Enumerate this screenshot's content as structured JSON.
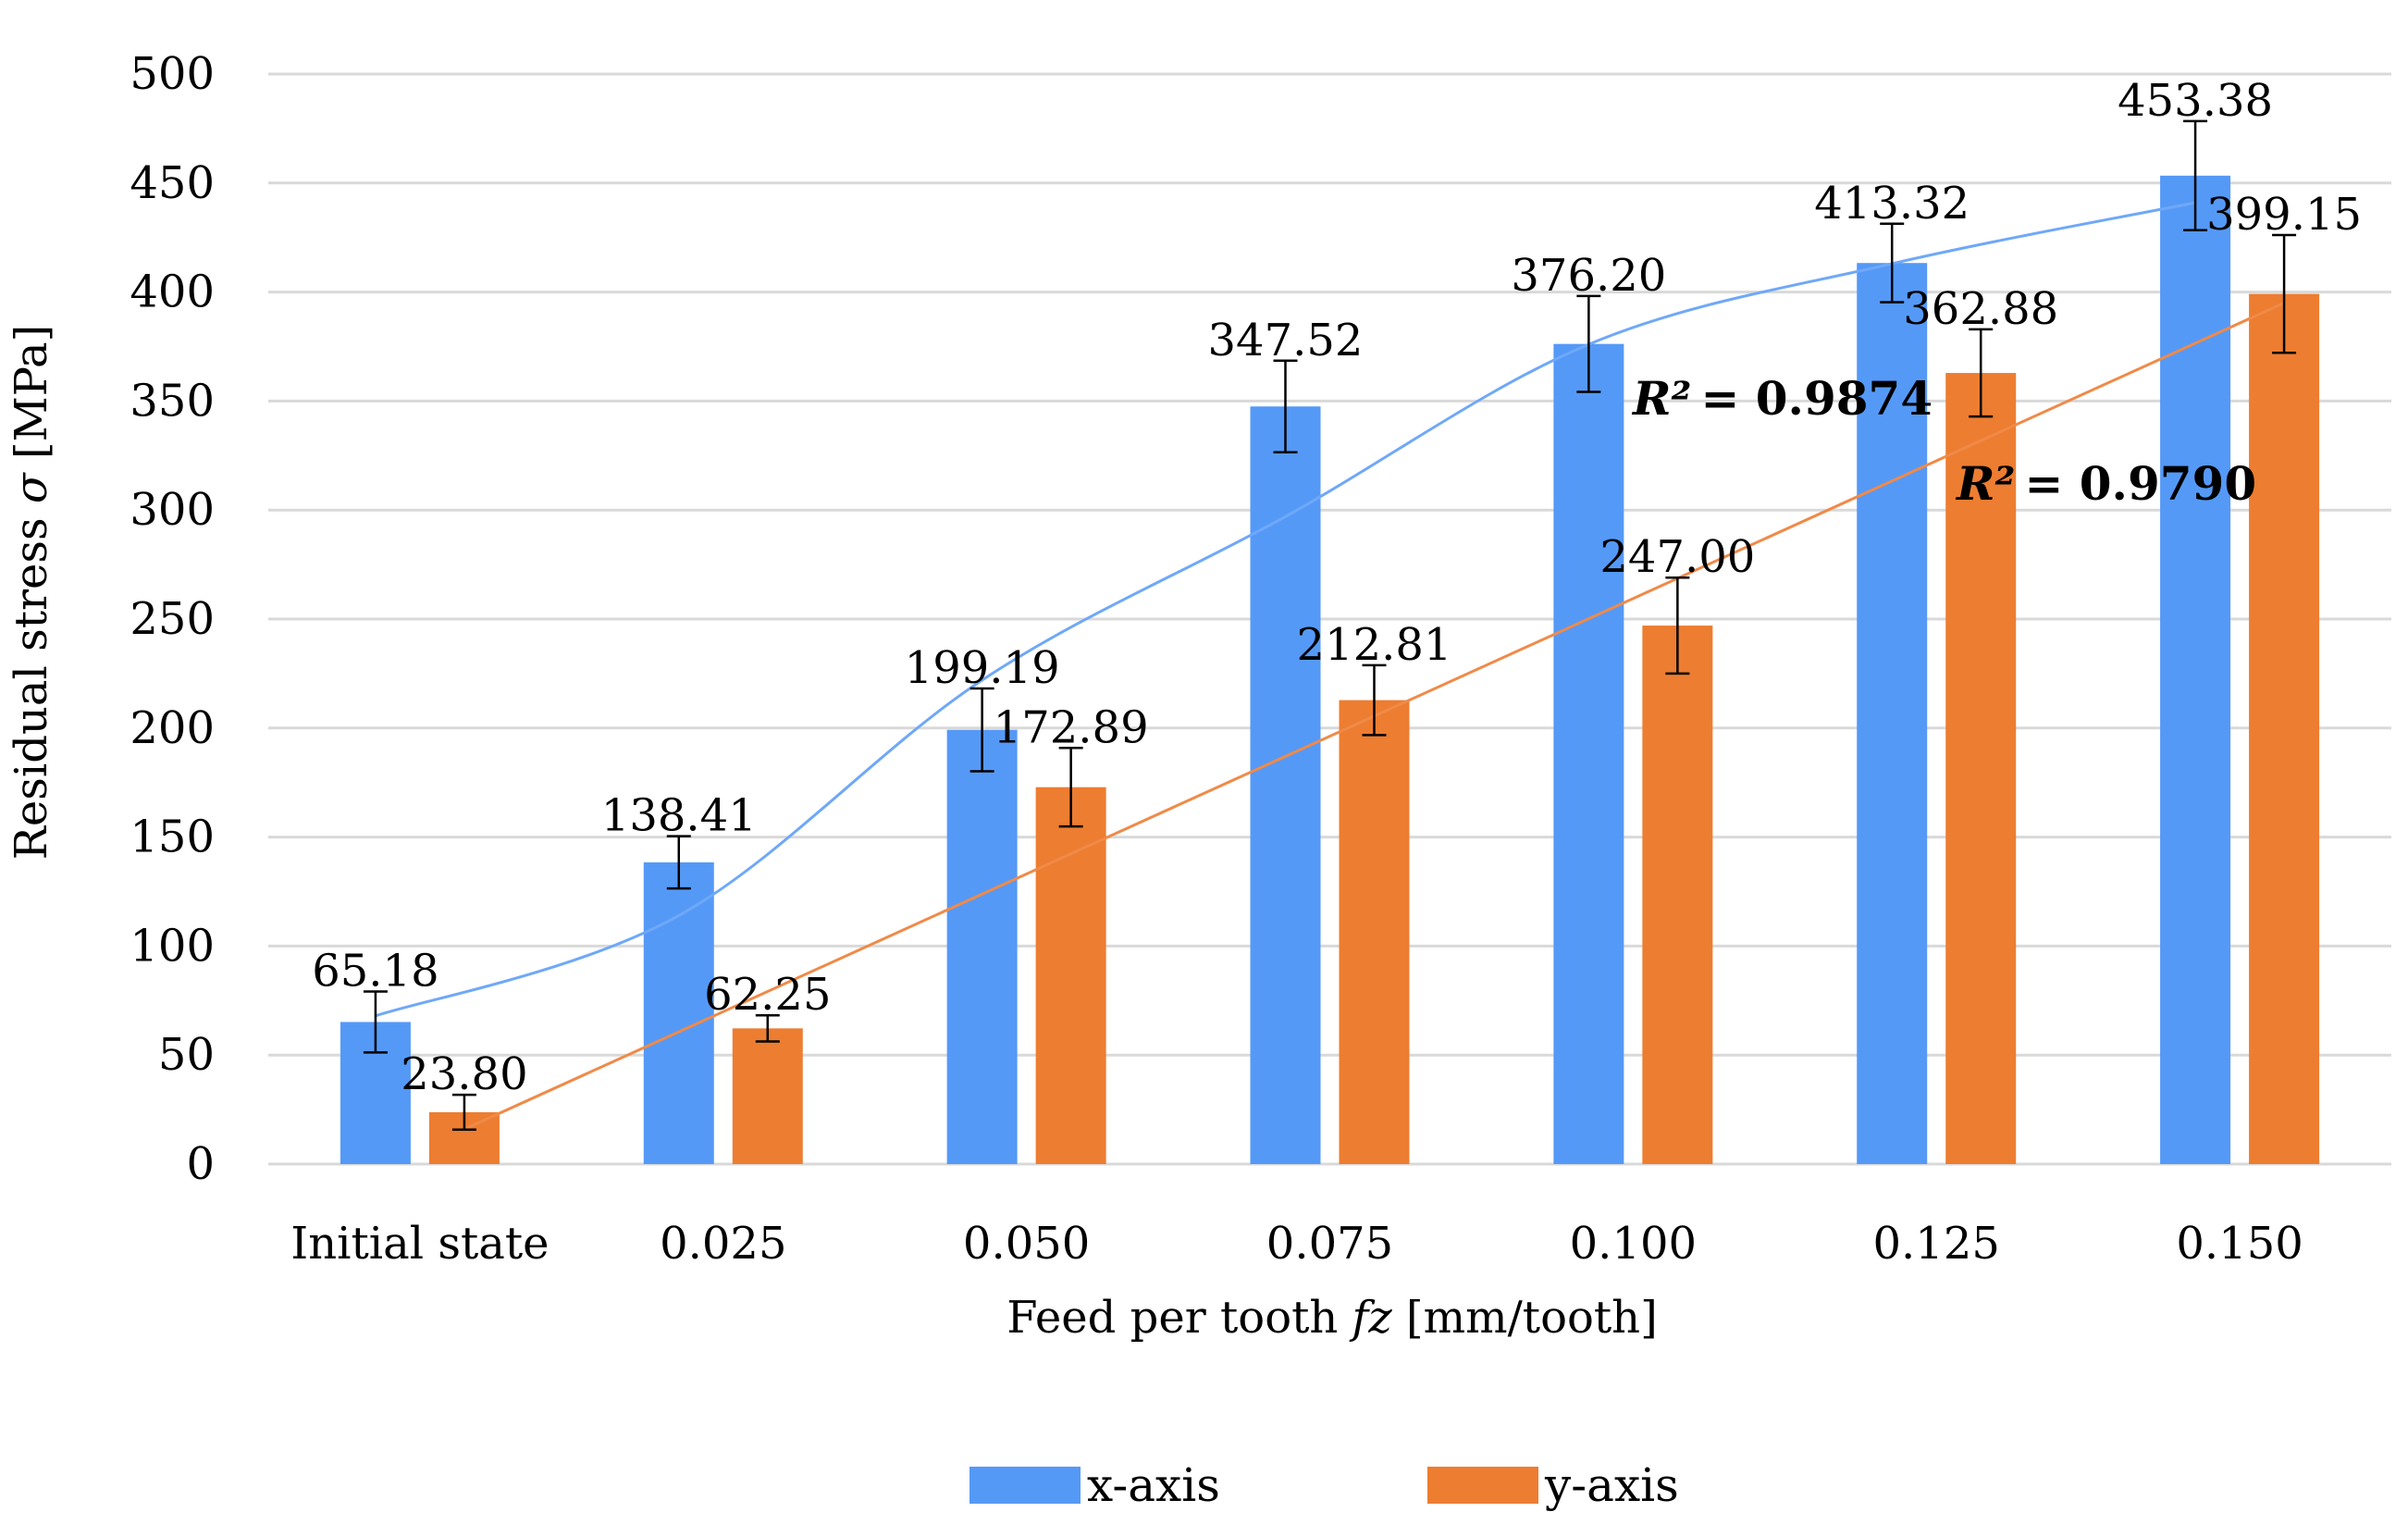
{
  "chart_data": {
    "type": "bar",
    "title": "",
    "xlabel": "Feed per tooth fz [mm/tooth]",
    "xlabel_parts": {
      "prefix": "Feed per tooth ",
      "symbol": "fz",
      "suffix": " [mm/tooth]"
    },
    "ylabel": "Residual stress σ [MPa]",
    "ylabel_parts": {
      "prefix": "Residual stress ",
      "symbol": "σ",
      "suffix": " [MPa]"
    },
    "ylim": [
      0,
      500
    ],
    "yticks": [
      0,
      50,
      100,
      150,
      200,
      250,
      300,
      350,
      400,
      450,
      500
    ],
    "grid": true,
    "legend_position": "bottom",
    "categories": [
      "Initial state",
      "0.025",
      "0.050",
      "0.075",
      "0.100",
      "0.125",
      "0.150"
    ],
    "series": [
      {
        "name": "x-axis",
        "color": "#5599F7",
        "values": [
          65.18,
          138.41,
          199.19,
          347.52,
          376.2,
          413.32,
          453.38
        ],
        "labels": [
          "65.18",
          "138.41",
          "199.19",
          "347.52",
          "376.20",
          "413.32",
          "453.38"
        ],
        "error": [
          14,
          12,
          19,
          21,
          22,
          18,
          25
        ],
        "trendline": {
          "type": "polynomial",
          "color": "#6FA8F8",
          "points": [
            68,
            114,
            222,
            297,
            376,
            413,
            441
          ],
          "r2_label": "= 0.9874"
        }
      },
      {
        "name": "y-axis",
        "color": "#ED7D31",
        "values": [
          23.8,
          62.25,
          172.89,
          212.81,
          247.0,
          362.88,
          399.15
        ],
        "labels": [
          "23.80",
          "62.25",
          "172.89",
          "212.81",
          "247.00",
          "362.88",
          "399.15"
        ],
        "error": [
          8,
          6,
          18,
          16,
          22,
          20,
          27
        ],
        "trendline": {
          "type": "linear",
          "color": "#F08A48",
          "points": [
            16,
            80,
            143,
            206,
            269,
            332,
            395
          ],
          "r2_label": "= 0.9790"
        }
      }
    ],
    "r2_symbol": "R²"
  }
}
